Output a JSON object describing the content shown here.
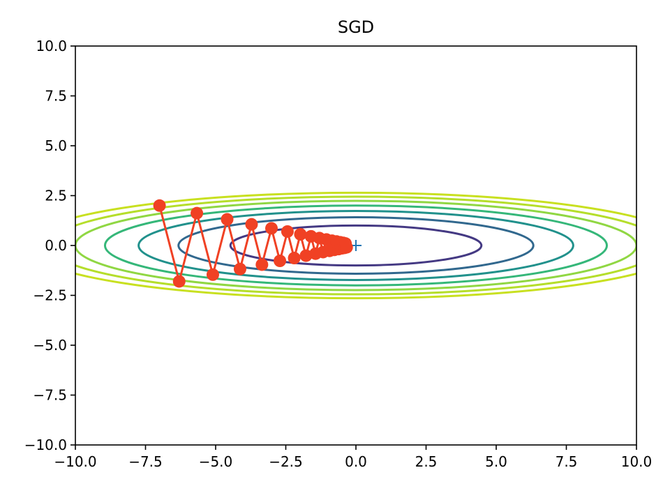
{
  "chart_data": {
    "type": "line",
    "title": "SGD",
    "xlabel": "",
    "ylabel": "",
    "xlim": [
      -10,
      10
    ],
    "ylim": [
      -10,
      10
    ],
    "xticks": [
      "−10.0",
      "−7.5",
      "−5.0",
      "−2.5",
      "0.0",
      "2.5",
      "5.0",
      "7.5",
      "10.0"
    ],
    "yticks": [
      "10.0",
      "7.5",
      "5.0",
      "2.5",
      "0.0",
      "−2.5",
      "−5.0",
      "−7.5",
      "−10.0"
    ],
    "xtick_values": [
      -10,
      -7.5,
      -5,
      -2.5,
      0,
      2.5,
      5,
      7.5,
      10
    ],
    "ytick_values": [
      10,
      7.5,
      5,
      2.5,
      0,
      -2.5,
      -5,
      -7.5,
      -10
    ],
    "grid": false,
    "function": "f(x, y) = x^2/20 + y^2",
    "contours": {
      "levels": [
        1,
        2,
        3,
        4,
        5,
        6,
        7
      ],
      "colors": [
        "#443983",
        "#31688e",
        "#21918c",
        "#35b779",
        "#90d743",
        "#b5de2b",
        "#c8e020"
      ]
    },
    "minimum_marker": {
      "x": 0,
      "y": 0,
      "symbol": "+",
      "color": "#1f77b4"
    },
    "series": [
      {
        "color": "#f04124",
        "marker": "o",
        "x": [
          -7.0,
          -6.3,
          -5.67,
          -5.1,
          -4.59,
          -4.13,
          -3.72,
          -3.35,
          -3.01,
          -2.71,
          -2.44,
          -2.2,
          -1.98,
          -1.78,
          -1.6,
          -1.44,
          -1.3,
          -1.17,
          -1.05,
          -0.94,
          -0.85,
          -0.77,
          -0.69,
          -0.62,
          -0.56,
          -0.5,
          -0.45,
          -0.41,
          -0.37,
          -0.33
        ],
        "y": [
          2.0,
          -1.8,
          1.62,
          -1.46,
          1.31,
          -1.18,
          1.06,
          -0.96,
          0.86,
          -0.77,
          0.7,
          -0.63,
          0.56,
          -0.51,
          0.46,
          -0.41,
          0.37,
          -0.33,
          0.3,
          -0.27,
          0.24,
          -0.22,
          0.2,
          -0.18,
          0.16,
          -0.14,
          0.13,
          -0.12,
          0.1,
          -0.09
        ]
      }
    ]
  }
}
